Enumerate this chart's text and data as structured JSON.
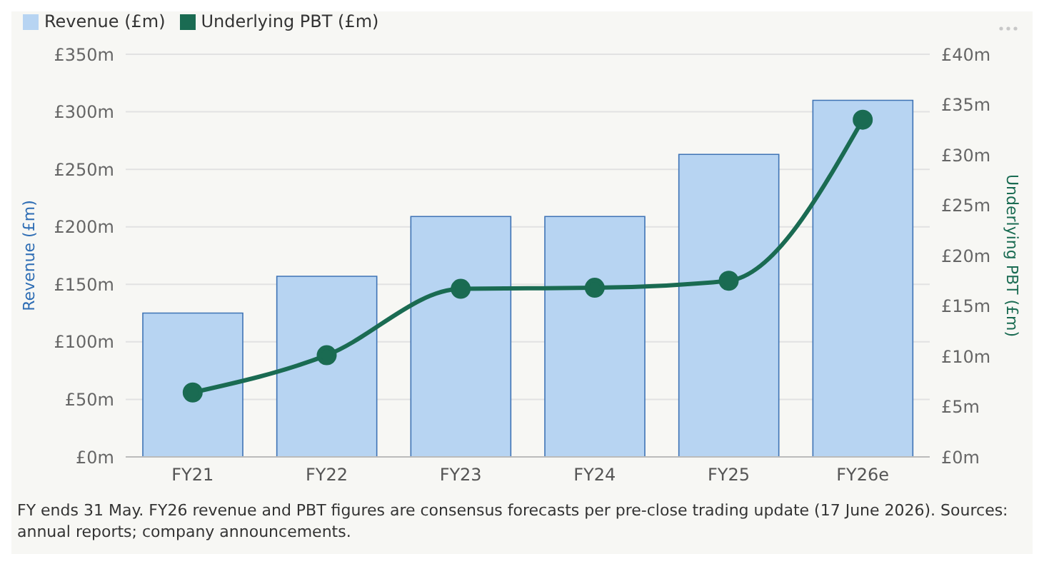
{
  "chart_data": {
    "type": "bar",
    "categories": [
      "FY21",
      "FY22",
      "FY23",
      "FY24",
      "FY25",
      "FY26e"
    ],
    "series": [
      {
        "name": "Revenue (£m)",
        "color": "#b7d4f2",
        "values": [
          125,
          157,
          209,
          209,
          263,
          310
        ]
      },
      {
        "name": "Underlying PBT (£m)",
        "type": "line",
        "axis": "y2",
        "color": "#1a6b52",
        "values": [
          6.4,
          10.1,
          16.7,
          16.8,
          17.5,
          33.5
        ]
      }
    ],
    "ylabel": "Revenue (£m)",
    "y2label": "Underlying PBT (£m)",
    "ylim": [
      0,
      350
    ],
    "yticks": [
      {
        "value": 0,
        "label": "£0m"
      },
      {
        "value": 50,
        "label": "£50m"
      },
      {
        "value": 100,
        "label": "£100m"
      },
      {
        "value": 150,
        "label": "£150m"
      },
      {
        "value": 200,
        "label": "£200m"
      },
      {
        "value": 250,
        "label": "£250m"
      },
      {
        "value": 300,
        "label": "£300m"
      },
      {
        "value": 350,
        "label": "£350m"
      }
    ],
    "y2lim": [
      0,
      40
    ],
    "y2ticks": [
      {
        "value": 0,
        "label": "£0m"
      },
      {
        "value": 5,
        "label": "£5m"
      },
      {
        "value": 10,
        "label": "£10m"
      },
      {
        "value": 15,
        "label": "£15m"
      },
      {
        "value": 20,
        "label": "£20m"
      },
      {
        "value": 25,
        "label": "£25m"
      },
      {
        "value": 30,
        "label": "£30m"
      },
      {
        "value": 35,
        "label": "£35m"
      },
      {
        "value": 40,
        "label": "£40m"
      }
    ],
    "grid": "y",
    "legend": "top left",
    "marker": "circle",
    "line_style": "solid",
    "annotations": [
      "FY ends 31 May. FY26 revenue and PBT figures are consensus forecasts per pre-close trading update (17 June 2026). Sources: annual reports; company announcements."
    ]
  }
}
